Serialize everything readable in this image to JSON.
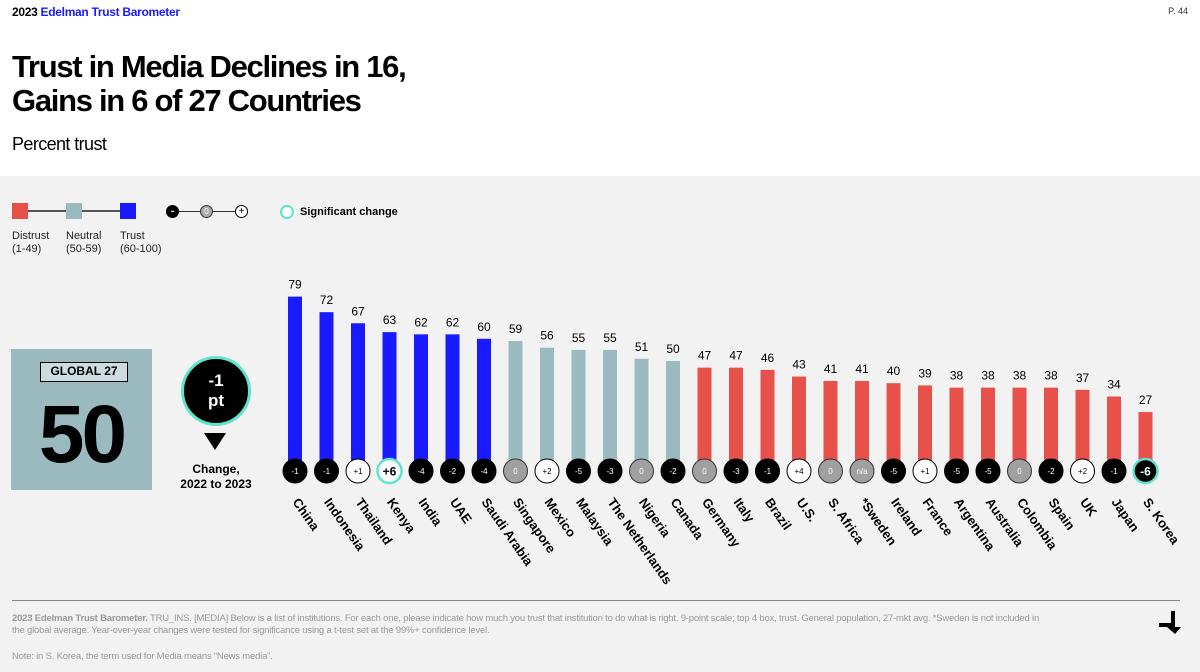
{
  "header": {
    "brand_year": "2023",
    "brand_name": "Edelman Trust Barometer",
    "page_label": "P. 44"
  },
  "title_line1": "Trust in Media Declines in 16,",
  "title_line2": "Gains in 6 of 27 Countries",
  "subtitle": "Percent trust",
  "legend": {
    "distrust": "Distrust",
    "distrust_range": "(1-49)",
    "neutral": "Neutral",
    "neutral_range": "(50-59)",
    "trust": "Trust",
    "trust_range": "(60-100)",
    "minus": "-",
    "zero": "0",
    "plus": "+",
    "significant": "Significant change"
  },
  "colors": {
    "distrust": "#e8504a",
    "neutral": "#9bbac0",
    "trust": "#1a1aff",
    "significant_ring": "#5fe3cc"
  },
  "global": {
    "tag": "GLOBAL 27",
    "value": "50",
    "change_line1": "-1",
    "change_line2": "pt",
    "change_label_line1": "Change,",
    "change_label_line2": "2022 to 2023"
  },
  "chart_data": {
    "type": "bar",
    "categories": [
      "China",
      "Indonesia",
      "Thailand",
      "Kenya",
      "India",
      "UAE",
      "Saudi Arabia",
      "Singapore",
      "Mexico",
      "Malaysia",
      "The Netherlands",
      "Nigeria",
      "Canada",
      "Germany",
      "Italy",
      "Brazil",
      "U.S.",
      "S. Africa",
      "*Sweden",
      "Ireland",
      "France",
      "Argentina",
      "Australia",
      "Colombia",
      "Spain",
      "UK",
      "Japan",
      "S. Korea"
    ],
    "values": [
      79,
      72,
      67,
      63,
      62,
      62,
      60,
      59,
      56,
      55,
      55,
      51,
      50,
      47,
      47,
      46,
      43,
      41,
      41,
      40,
      39,
      38,
      38,
      38,
      38,
      37,
      34,
      27
    ],
    "changes": [
      "-1",
      "-1",
      "+1",
      "+6",
      "-4",
      "-2",
      "-4",
      "0",
      "+2",
      "-5",
      "-3",
      "0",
      "-2",
      "0",
      "-3",
      "-1",
      "+4",
      "0",
      "n/a",
      "-5",
      "+1",
      "-5",
      "-5",
      "0",
      "-2",
      "+2",
      "-1",
      "-6"
    ],
    "significant": [
      false,
      false,
      false,
      true,
      false,
      false,
      false,
      false,
      false,
      false,
      false,
      false,
      false,
      false,
      false,
      false,
      false,
      false,
      false,
      false,
      false,
      false,
      false,
      false,
      false,
      false,
      false,
      true
    ],
    "ylim": [
      0,
      100
    ]
  },
  "footer": {
    "source_bold": "2023 Edelman Trust Barometer.",
    "source_text": " TRU_INS. [MEDIA] Below is a list of institutions. For each one, please indicate how much you trust that institution to do what is right. 9-point scale; top 4 box, trust. General population, 27-mkt avg. *Sweden is not included in the global average. Year-over-year changes were tested for significance using a t-test set at the 99%+ confidence level.",
    "note": "Note: in S. Korea, the term used for Media means “News media”."
  }
}
